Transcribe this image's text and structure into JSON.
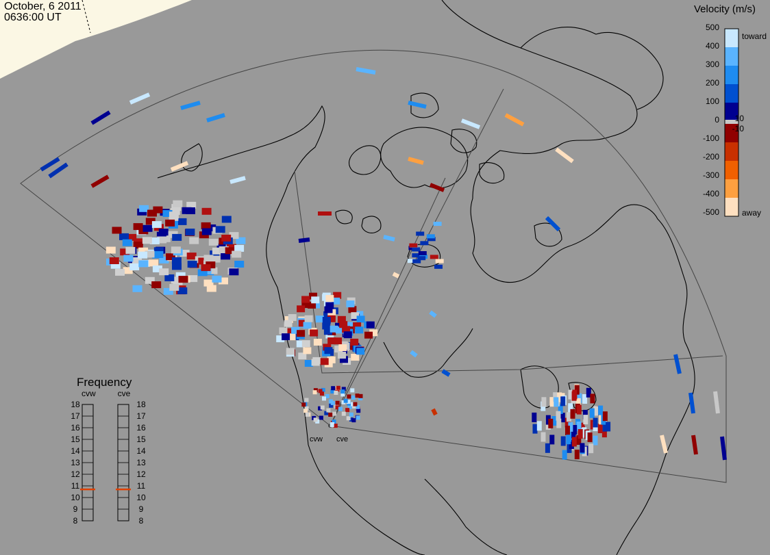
{
  "header": {
    "date": "October, 6 2011",
    "time": "0636:00 UT"
  },
  "velocity_scale": {
    "title": "Velocity (m/s)",
    "ticks": [
      "500",
      "400",
      "300",
      "200",
      "100",
      "10",
      "0",
      "-10",
      "-100",
      "-200",
      "-300",
      "-400",
      "-500"
    ],
    "toward_label": "toward",
    "away_label": "away",
    "colors": {
      "ground_scatter": "#c8c8c8",
      "toward": "#0000aa",
      "away": "#b00000"
    }
  },
  "frequency_panel": {
    "title": "Frequency",
    "radars": [
      {
        "name": "cvw",
        "frequency_mhz": 10.7
      },
      {
        "name": "cve",
        "frequency_mhz": 10.7
      }
    ],
    "scale_labels": [
      "18",
      "17",
      "16",
      "15",
      "14",
      "13",
      "12",
      "11",
      "10",
      "9",
      "8"
    ],
    "indicator_color": "#e04000"
  },
  "map": {
    "sites": [
      {
        "name": "cvw"
      },
      {
        "name": "cve"
      }
    ]
  }
}
